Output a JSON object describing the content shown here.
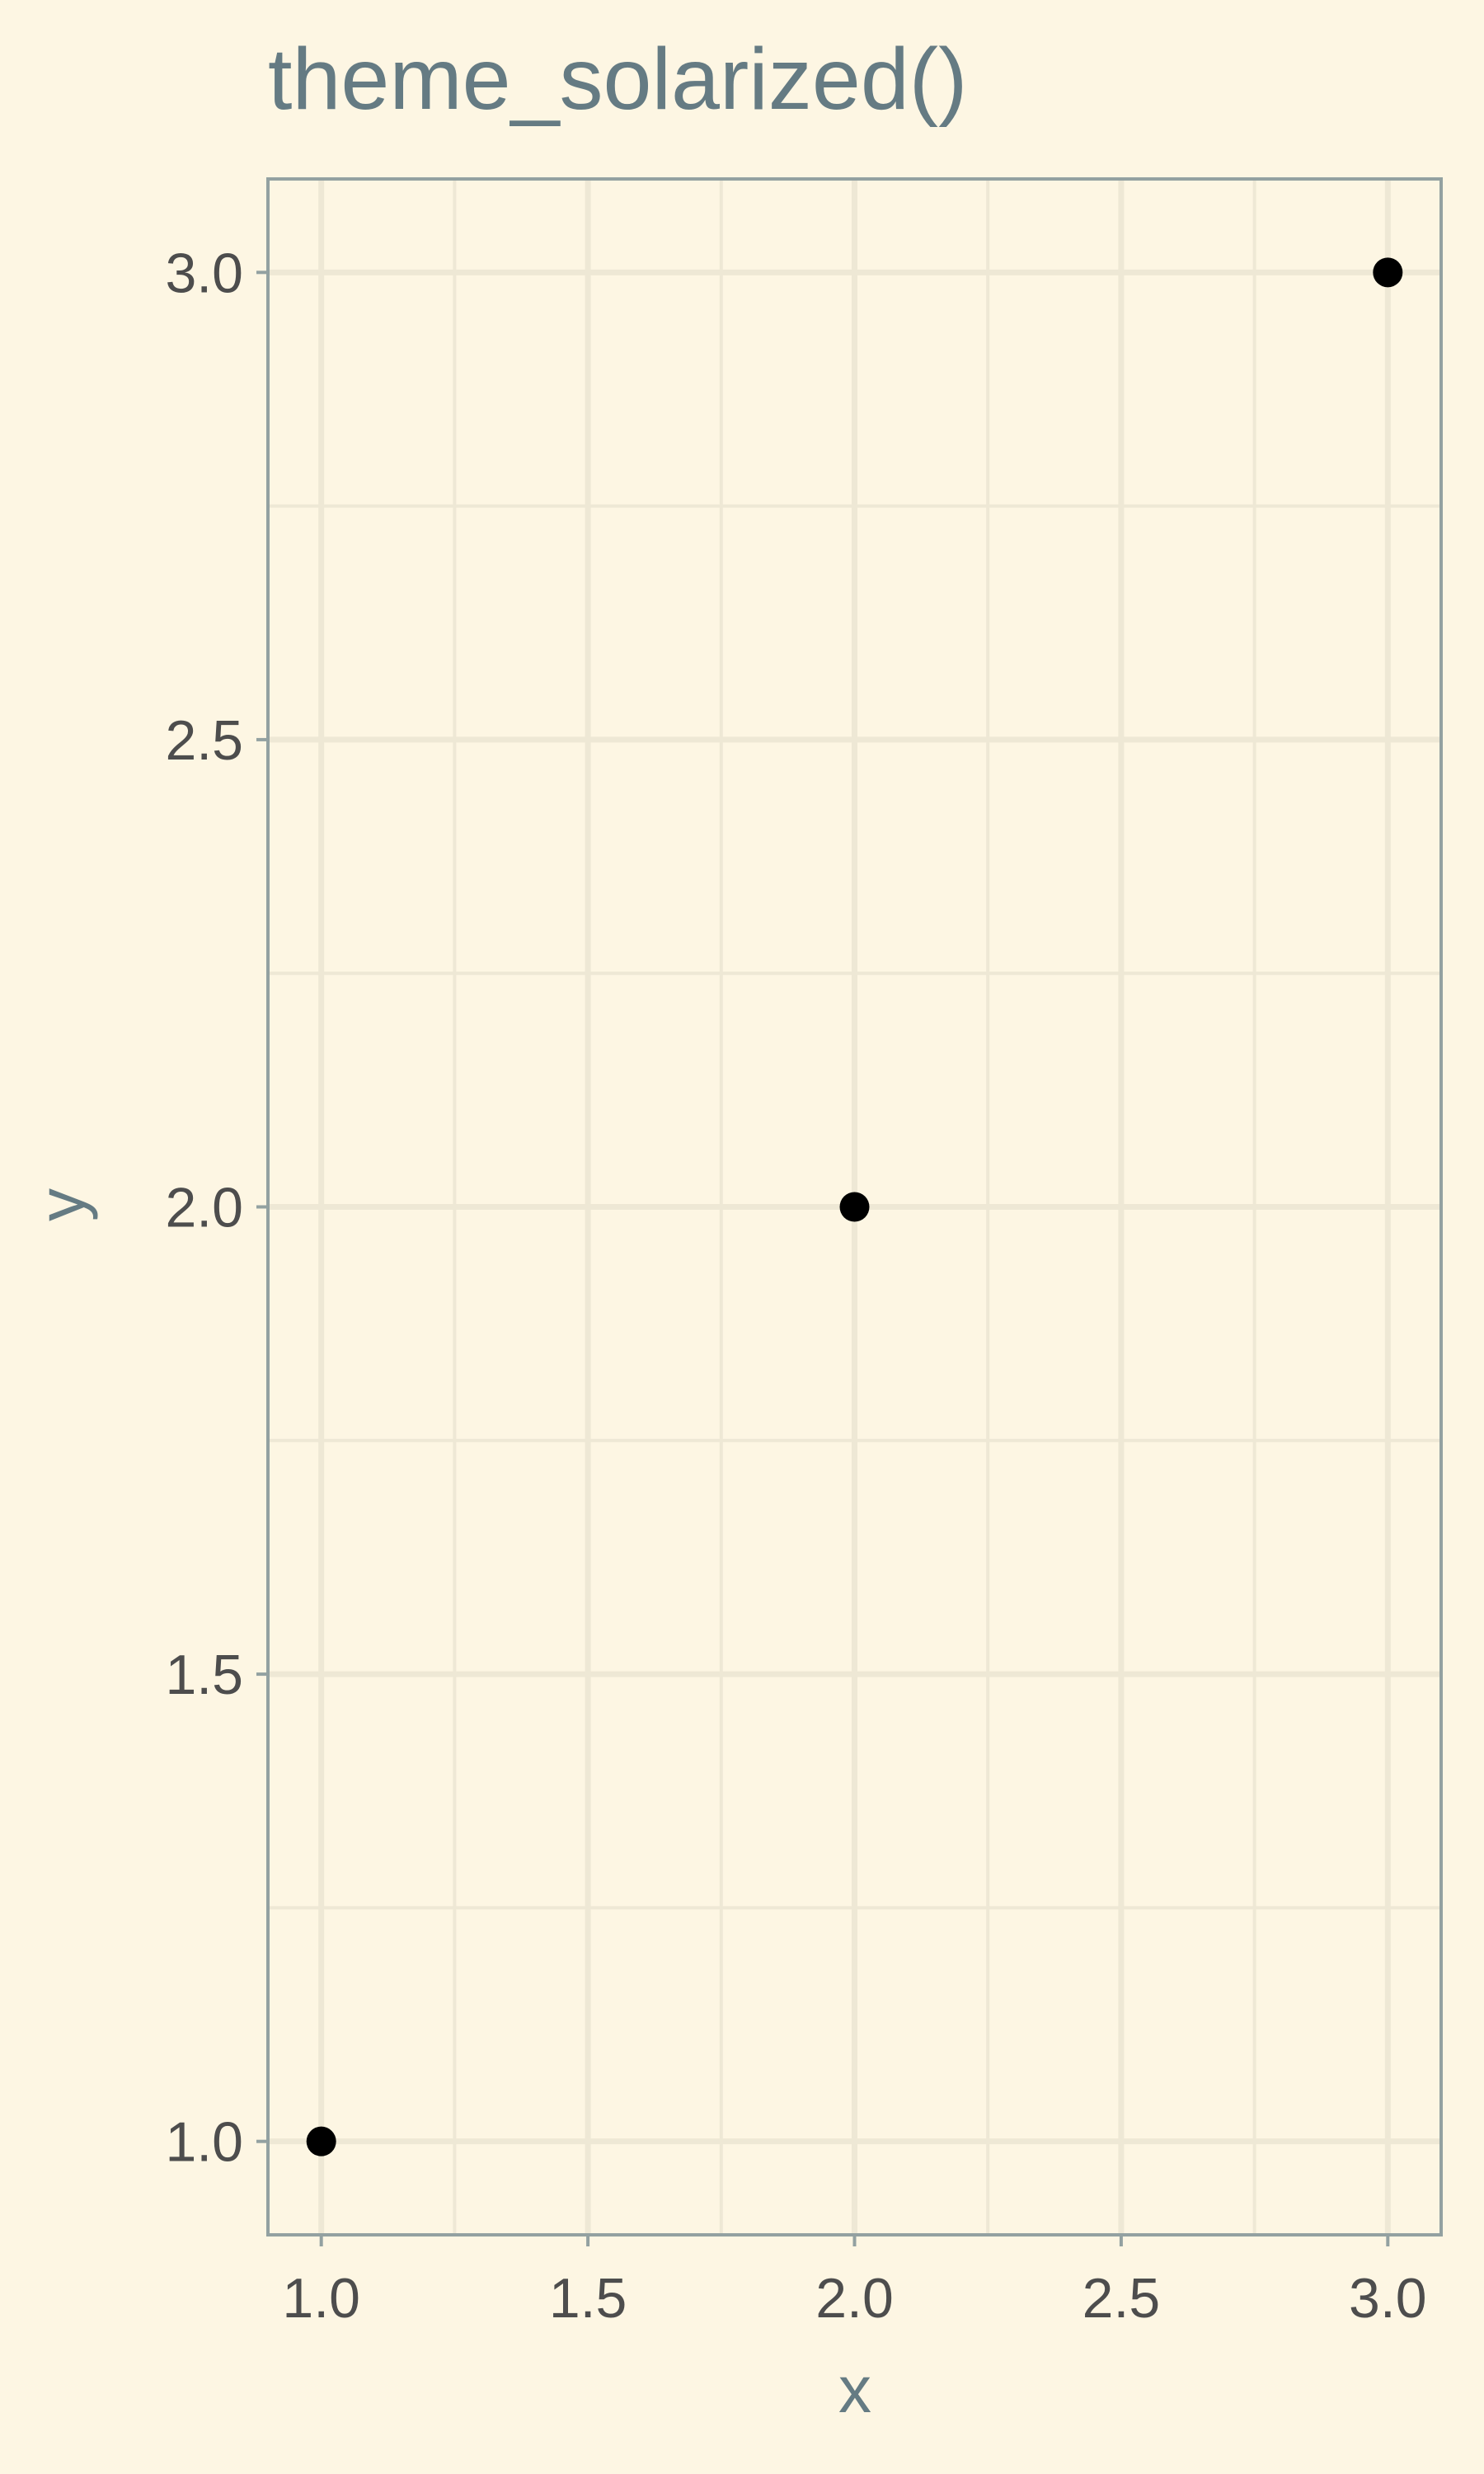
{
  "chart_data": {
    "type": "scatter",
    "title": "theme_solarized()",
    "xlabel": "x",
    "ylabel": "y",
    "x": [
      1,
      2,
      3
    ],
    "y": [
      1,
      2,
      3
    ],
    "xlim": [
      0.9,
      3.1
    ],
    "ylim": [
      0.9,
      3.1
    ],
    "xticks": [
      "1.0",
      "1.5",
      "2.0",
      "2.5",
      "3.0"
    ],
    "yticks": [
      "1.0",
      "1.5",
      "2.0",
      "2.5",
      "3.0"
    ],
    "grid": true,
    "legend": "none",
    "colors": {
      "background": "#FDF6E3",
      "panel_border": "#93A1A1",
      "grid": "#EEE8D5",
      "title": "#657B83",
      "tick_text": "#4D4D4D",
      "point": "#000000"
    }
  }
}
